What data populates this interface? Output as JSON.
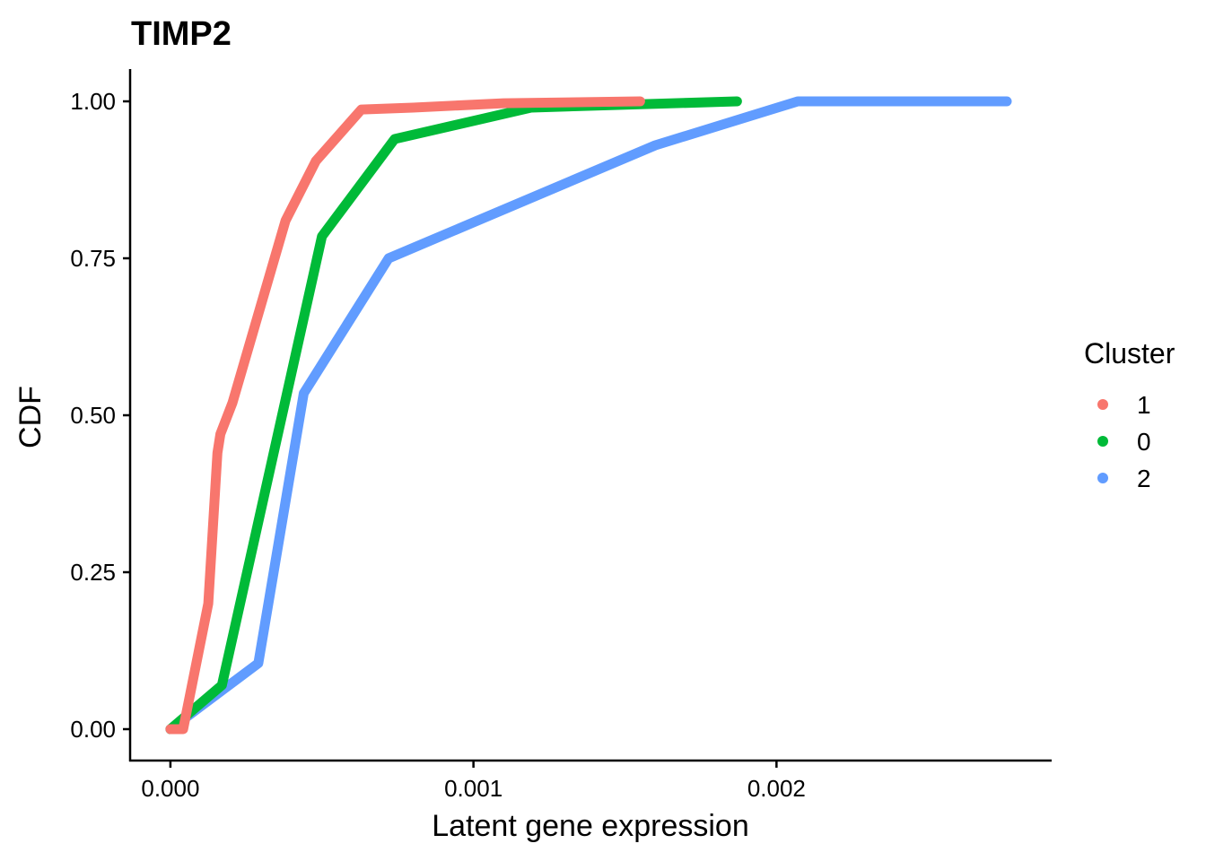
{
  "chart_data": {
    "type": "line",
    "title": "TIMP2",
    "xlabel": "Latent gene expression",
    "ylabel": "CDF",
    "xlim": [
      -0.000133,
      0.002908
    ],
    "ylim": [
      -0.05,
      1.05
    ],
    "x_ticks": [
      {
        "value": 0.0,
        "label": "0.000"
      },
      {
        "value": 0.001,
        "label": "0.001"
      },
      {
        "value": 0.002,
        "label": "0.002"
      }
    ],
    "y_ticks": [
      {
        "value": 0.0,
        "label": "0.00"
      },
      {
        "value": 0.25,
        "label": "0.25"
      },
      {
        "value": 0.5,
        "label": "0.50"
      },
      {
        "value": 0.75,
        "label": "0.75"
      },
      {
        "value": 1.0,
        "label": "1.00"
      }
    ],
    "grid": false,
    "legend": {
      "title": "Cluster",
      "position": "right"
    },
    "series": [
      {
        "name": "1",
        "color": "#F8766D",
        "x": [
          0.0,
          4.2e-05,
          0.000125,
          0.000155,
          0.000165,
          0.000205,
          0.00038,
          0.00048,
          0.00063,
          0.0008,
          0.0011,
          0.00155
        ],
        "y": [
          0.0,
          0.0,
          0.2,
          0.44,
          0.47,
          0.52,
          0.81,
          0.905,
          0.987,
          0.99,
          0.997,
          1.0
        ]
      },
      {
        "name": "0",
        "color": "#00BA38",
        "x": [
          0.0,
          0.00017,
          0.0005,
          0.00074,
          0.00119,
          0.00187
        ],
        "y": [
          0.0,
          0.07,
          0.785,
          0.94,
          0.99,
          1.0
        ]
      },
      {
        "name": "2",
        "color": "#619CFF",
        "x": [
          0.0,
          0.00029,
          0.00044,
          0.00072,
          0.0016,
          0.00207,
          0.00276
        ],
        "y": [
          0.0,
          0.105,
          0.535,
          0.75,
          0.93,
          1.0,
          1.0
        ]
      }
    ]
  }
}
